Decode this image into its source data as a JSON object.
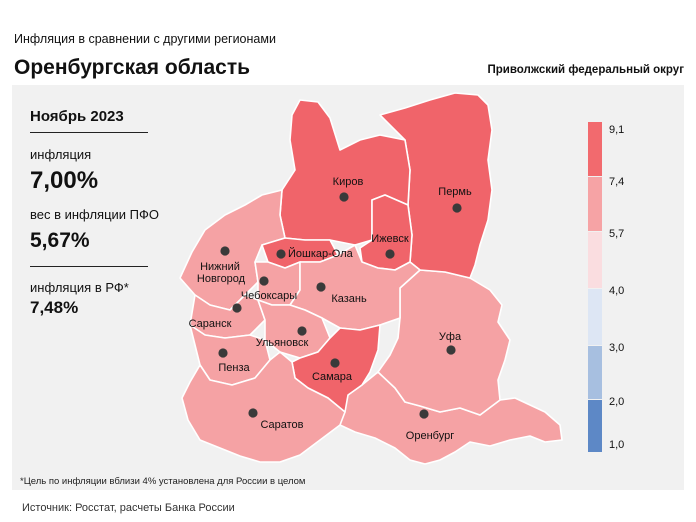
{
  "header": {
    "subtitle": "Инфляция  в сравнении  с другими регионами",
    "region": "Оренбургская область",
    "district": "Приволжский федеральный округ"
  },
  "stats": {
    "month": "Ноябрь 2023",
    "inflation_label": "инфляция",
    "inflation_value": "7,00%",
    "weight_label": "вес в инфляции  ПФО",
    "weight_value": "5,67%",
    "rf_label": "инфляция  в РФ*",
    "rf_value": "7,48%"
  },
  "map": {
    "cities": [
      {
        "name": "Киров",
        "lines": [
          "Киров"
        ]
      },
      {
        "name": "Пермь",
        "lines": [
          "Пермь"
        ]
      },
      {
        "name": "Ижевск",
        "lines": [
          "Ижевск"
        ]
      },
      {
        "name": "Йошкар-Ола",
        "lines": [
          "Йошкар-Ола"
        ]
      },
      {
        "name": "Нижний Новгород",
        "lines": [
          "Нижний",
          "Новгород"
        ]
      },
      {
        "name": "Чебоксары",
        "lines": [
          "Чебоксары"
        ]
      },
      {
        "name": "Казань",
        "lines": [
          "Казань"
        ]
      },
      {
        "name": "Саранск",
        "lines": [
          "Саранск"
        ]
      },
      {
        "name": "Ульяновск",
        "lines": [
          "Ульяновск"
        ]
      },
      {
        "name": "Пенза",
        "lines": [
          "Пенза"
        ]
      },
      {
        "name": "Уфа",
        "lines": [
          "Уфа"
        ]
      },
      {
        "name": "Самара",
        "lines": [
          "Самара"
        ]
      },
      {
        "name": "Саратов",
        "lines": [
          "Саратов"
        ]
      },
      {
        "name": "Оренбург",
        "lines": [
          "Оренбург"
        ]
      }
    ]
  },
  "legend": {
    "ticks": [
      "9,1",
      "7,4",
      "5,7",
      "4,0",
      "3,0",
      "2,0",
      "1,0"
    ],
    "colors": [
      "#f26a6e",
      "#f6a3a5",
      "#fadde0",
      "#dde6f4",
      "#a7bfe0",
      "#5d88c6"
    ]
  },
  "colors": {
    "dark_red": "#f0646a",
    "light_red": "#f5a2a4",
    "panel": "#f1f1f1"
  },
  "footnote": "*Цель по инфляции вблизи 4% установлена для России в целом",
  "source": "Источник: Росстат, расчеты Банка России"
}
